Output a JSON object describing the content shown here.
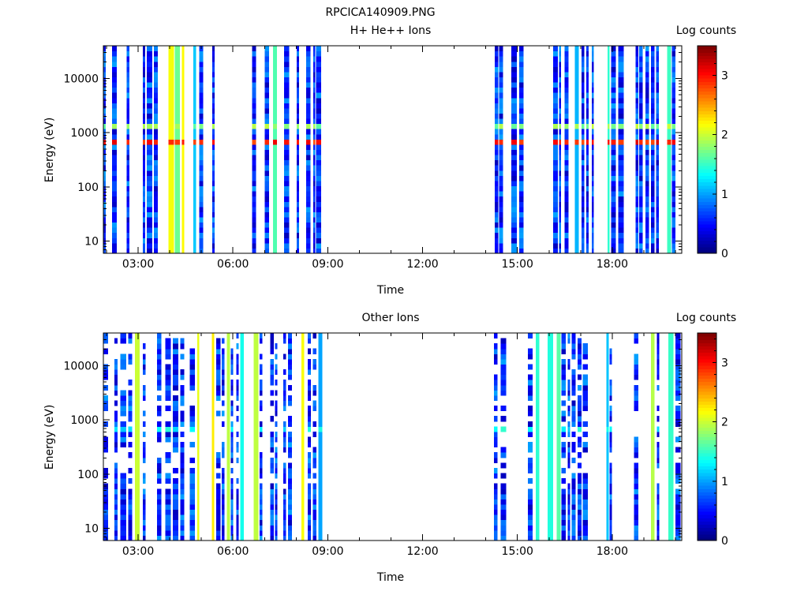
{
  "figure_title": "RPCICA140909.PNG",
  "chart_data": [
    {
      "type": "heatmap",
      "title": "H+ He++ Ions",
      "xlabel": "Time",
      "ylabel": "Energy (eV)",
      "y_scale": "log",
      "ylim": [
        6,
        40000
      ],
      "x_range_hours": [
        1.9,
        20.2
      ],
      "x_ticks": [
        "03:00",
        "06:00",
        "09:00",
        "12:00",
        "15:00",
        "18:00"
      ],
      "x_tick_hours": [
        3,
        6,
        9,
        12,
        15,
        18
      ],
      "y_ticks": [
        "10",
        "100",
        "1000",
        "10000"
      ],
      "y_tick_values": [
        10,
        100,
        1000,
        10000
      ],
      "colorbar": {
        "label": "Log counts",
        "range": [
          0,
          3.5
        ],
        "ticks": [
          "0",
          "1",
          "2",
          "3"
        ],
        "tick_values": [
          0,
          1,
          2,
          3
        ],
        "colormap": "jet"
      },
      "data_gaps_hours": [
        [
          8.85,
          14.15
        ]
      ],
      "bands": [
        {
          "energy_range_eV": [
            550,
            800
          ],
          "log_counts": 3.2
        },
        {
          "energy_range_eV": [
            1300,
            1600
          ],
          "log_counts": 2.0
        }
      ]
    },
    {
      "type": "heatmap",
      "title": "Other Ions",
      "xlabel": "Time",
      "ylabel": "Energy (eV)",
      "y_scale": "log",
      "ylim": [
        6,
        40000
      ],
      "x_range_hours": [
        1.9,
        20.2
      ],
      "x_ticks": [
        "03:00",
        "06:00",
        "09:00",
        "12:00",
        "15:00",
        "18:00"
      ],
      "x_tick_hours": [
        3,
        6,
        9,
        12,
        15,
        18
      ],
      "y_ticks": [
        "10",
        "100",
        "1000",
        "10000"
      ],
      "y_tick_values": [
        10,
        100,
        1000,
        10000
      ],
      "colorbar": {
        "label": "Log counts",
        "range": [
          0,
          3.5
        ],
        "ticks": [
          "0",
          "1",
          "2",
          "3"
        ],
        "tick_values": [
          0,
          1,
          2,
          3
        ],
        "colormap": "jet"
      },
      "data_gaps_hours": [
        [
          8.85,
          14.15
        ]
      ],
      "bands": [
        {
          "energy_range_eV": [
            580,
            750
          ],
          "log_counts": 1.5
        }
      ]
    }
  ]
}
